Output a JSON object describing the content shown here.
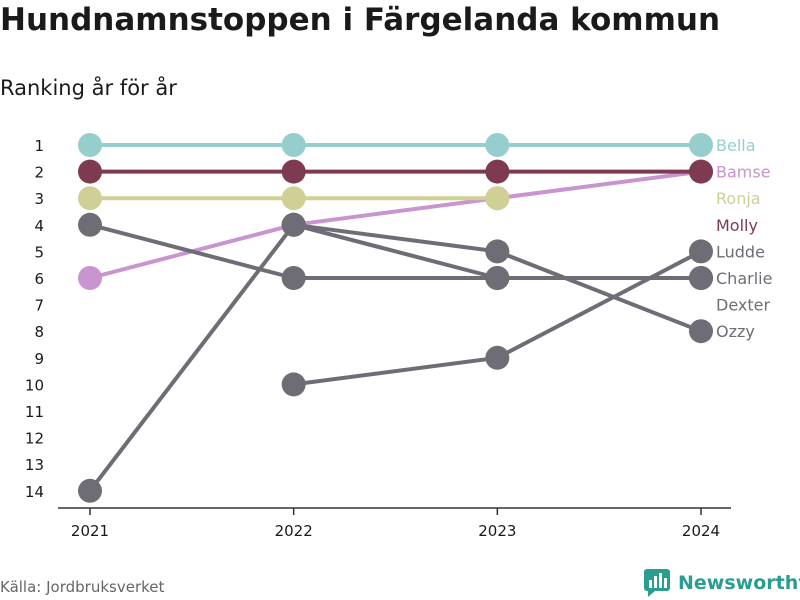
{
  "title": "Hundnamnstoppen i Färgelanda kommun",
  "subtitle": "Ranking år för år",
  "source": "Källa: Jordbruksverket",
  "brand": "Newsworthy",
  "colors": {
    "brand": "#2a9d8f",
    "axis": "#333333",
    "text": "#1a1a1a"
  },
  "chart_data": {
    "type": "line",
    "x": [
      "2021",
      "2022",
      "2023",
      "2024"
    ],
    "y_ticks": [
      1,
      2,
      3,
      4,
      5,
      6,
      7,
      8,
      9,
      10,
      11,
      12,
      13,
      14
    ],
    "ylim": [
      1,
      14
    ],
    "y_inverted": true,
    "grid": false,
    "legend": "direct labels at right end of lines",
    "series": [
      {
        "name": "Bella",
        "color": "#96cdcd",
        "values": [
          1,
          1,
          1,
          1
        ]
      },
      {
        "name": "Bamse",
        "color": "#c994cf",
        "values": [
          6,
          4,
          3,
          2
        ]
      },
      {
        "name": "Ronja",
        "color": "#cfcf96",
        "values": [
          3,
          3,
          3,
          null
        ]
      },
      {
        "name": "Molly",
        "color": "#7d3a51",
        "values": [
          2,
          2,
          2,
          2
        ]
      },
      {
        "name": "Ludde",
        "color": "#6e6d75",
        "values": [
          null,
          10,
          9,
          5
        ]
      },
      {
        "name": "Charlie",
        "color": "#6e6d75",
        "values": [
          4,
          6,
          6,
          6
        ]
      },
      {
        "name": "Dexter",
        "color": "#6e6d75",
        "values": [
          14,
          4,
          6,
          6
        ]
      },
      {
        "name": "Ozzy",
        "color": "#6e6d75",
        "values": [
          null,
          4,
          5,
          8
        ]
      }
    ]
  }
}
